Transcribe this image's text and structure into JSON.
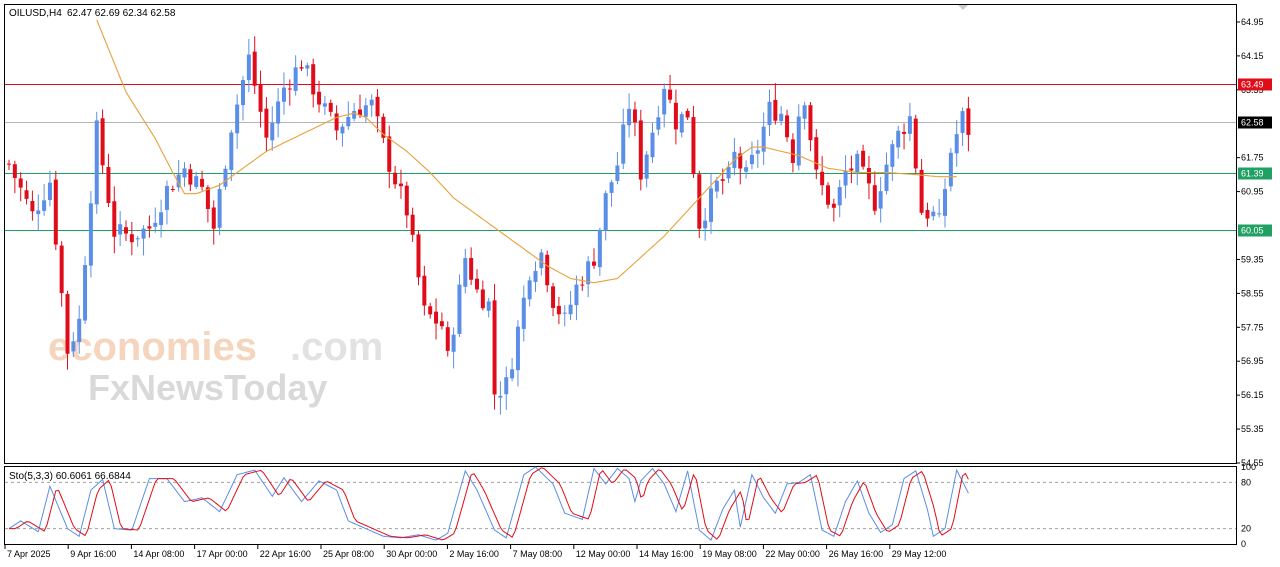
{
  "header": {
    "symbol": "OILUSD,H4",
    "ohlc": "62.47 62.69 62.34 62.58"
  },
  "stoch_header": "Sto(5,3,3) 60.6061 66.6844",
  "watermark": {
    "line1": "economies",
    "line1b": ".com",
    "line2": "FxNewsToday"
  },
  "colors": {
    "bull": "#5b8ee6",
    "bear": "#e00c1a",
    "ma": "#e8a13a",
    "resistance": "#e00c1a",
    "support": "#21a063",
    "current": "#000000",
    "stoch_k": "#5b8ee6",
    "stoch_d": "#e00c1a"
  },
  "chart_data": {
    "type": "candlestick",
    "price_axis": {
      "ticks": [
        "64.95",
        "64.15",
        "63.35",
        "61.75",
        "60.95",
        "59.35",
        "58.55",
        "57.75",
        "56.95",
        "56.15",
        "55.35",
        "54.55"
      ],
      "range": [
        54.55,
        65.35
      ]
    },
    "levels": [
      {
        "value": 63.49,
        "label": "63.49",
        "kind": "resistance"
      },
      {
        "value": 62.58,
        "label": "62.58",
        "kind": "current"
      },
      {
        "value": 61.39,
        "label": "61.39",
        "kind": "support"
      },
      {
        "value": 60.05,
        "label": "60.05",
        "kind": "support"
      }
    ],
    "time_labels": [
      "7 Apr 2025",
      "9 Apr 16:00",
      "14 Apr 08:00",
      "17 Apr 00:00",
      "22 Apr 16:00",
      "25 Apr 08:00",
      "30 Apr 00:00",
      "2 May 16:00",
      "7 May 08:00",
      "12 May 00:00",
      "14 May 16:00",
      "19 May 08:00",
      "22 May 00:00",
      "26 May 16:00",
      "29 May 12:00"
    ],
    "anchors": [
      [
        0,
        61.6
      ],
      [
        4,
        60.4
      ],
      [
        7,
        61.2
      ],
      [
        10,
        57.2
      ],
      [
        12,
        57.9
      ],
      [
        15,
        62.4
      ],
      [
        18,
        60.0
      ],
      [
        21,
        59.9
      ],
      [
        24,
        60.1
      ],
      [
        27,
        61.0
      ],
      [
        30,
        61.5
      ],
      [
        33,
        61.0
      ],
      [
        35,
        60.1
      ],
      [
        38,
        62.5
      ],
      [
        41,
        64.1
      ],
      [
        44,
        62.2
      ],
      [
        47,
        63.4
      ],
      [
        50,
        64.0
      ],
      [
        53,
        63.1
      ],
      [
        56,
        62.4
      ],
      [
        59,
        62.9
      ],
      [
        62,
        63.0
      ],
      [
        65,
        61.6
      ],
      [
        68,
        60.5
      ],
      [
        71,
        58.1
      ],
      [
        74,
        57.8
      ],
      [
        75,
        57.0
      ],
      [
        78,
        59.4
      ],
      [
        80,
        58.6
      ],
      [
        82,
        58.3
      ],
      [
        83,
        56.2
      ],
      [
        85,
        56.4
      ],
      [
        86,
        57.0
      ],
      [
        89,
        59.1
      ],
      [
        91,
        59.5
      ],
      [
        93,
        58.4
      ],
      [
        95,
        57.9
      ],
      [
        97,
        58.7
      ],
      [
        100,
        59.4
      ],
      [
        102,
        60.8
      ],
      [
        104,
        61.6
      ],
      [
        106,
        63.0
      ],
      [
        107,
        62.4
      ],
      [
        108,
        61.4
      ],
      [
        110,
        62.4
      ],
      [
        112,
        63.5
      ],
      [
        114,
        62.6
      ],
      [
        116,
        62.8
      ],
      [
        118,
        60.2
      ],
      [
        121,
        61.1
      ],
      [
        123,
        61.3
      ],
      [
        124,
        61.8
      ],
      [
        126,
        61.3
      ],
      [
        128,
        62.0
      ],
      [
        130,
        62.9
      ],
      [
        132,
        62.8
      ],
      [
        134,
        61.8
      ],
      [
        135,
        62.8
      ],
      [
        136,
        63.2
      ],
      [
        138,
        61.3
      ],
      [
        141,
        60.5
      ],
      [
        143,
        61.4
      ],
      [
        145,
        61.6
      ],
      [
        147,
        61.0
      ],
      [
        148,
        60.7
      ],
      [
        150,
        61.6
      ],
      [
        152,
        62.3
      ],
      [
        154,
        62.7
      ],
      [
        156,
        60.5
      ],
      [
        158,
        60.4
      ],
      [
        159,
        60.2
      ],
      [
        161,
        61.9
      ],
      [
        163,
        62.7
      ],
      [
        164,
        62.4
      ]
    ],
    "ma_anchors": [
      [
        15,
        65.0
      ],
      [
        20,
        63.3
      ],
      [
        25,
        62.2
      ],
      [
        28,
        61.4
      ],
      [
        30,
        60.9
      ],
      [
        32,
        60.9
      ],
      [
        36,
        61.1
      ],
      [
        40,
        61.5
      ],
      [
        44,
        61.9
      ],
      [
        47,
        62.1
      ],
      [
        50,
        62.3
      ],
      [
        53,
        62.5
      ],
      [
        56,
        62.7
      ],
      [
        59,
        62.8
      ],
      [
        61,
        62.7
      ],
      [
        64,
        62.3
      ],
      [
        68,
        61.9
      ],
      [
        72,
        61.4
      ],
      [
        76,
        60.8
      ],
      [
        80,
        60.4
      ],
      [
        84,
        60.0
      ],
      [
        88,
        59.6
      ],
      [
        92,
        59.2
      ],
      [
        96,
        58.9
      ],
      [
        100,
        58.8
      ],
      [
        104,
        58.9
      ],
      [
        108,
        59.4
      ],
      [
        112,
        59.9
      ],
      [
        116,
        60.5
      ],
      [
        120,
        61.1
      ],
      [
        124,
        61.7
      ],
      [
        127,
        62.0
      ],
      [
        129,
        62.0
      ],
      [
        132,
        61.9
      ],
      [
        135,
        61.8
      ],
      [
        140,
        61.5
      ],
      [
        145,
        61.4
      ],
      [
        150,
        61.4
      ],
      [
        155,
        61.35
      ],
      [
        159,
        61.3
      ],
      [
        162,
        61.3
      ]
    ],
    "stoch": {
      "y_ticks": [
        "100",
        "80",
        "20",
        "0"
      ],
      "levels": [
        80,
        20
      ],
      "k_anchors": [
        [
          0,
          20
        ],
        [
          2,
          30
        ],
        [
          5,
          16
        ],
        [
          7,
          75
        ],
        [
          10,
          20
        ],
        [
          12,
          10
        ],
        [
          14,
          70
        ],
        [
          16,
          84
        ],
        [
          18,
          20
        ],
        [
          21,
          18
        ],
        [
          24,
          85
        ],
        [
          27,
          85
        ],
        [
          30,
          55
        ],
        [
          33,
          60
        ],
        [
          36,
          42
        ],
        [
          39,
          90
        ],
        [
          42,
          96
        ],
        [
          45,
          62
        ],
        [
          47,
          86
        ],
        [
          50,
          55
        ],
        [
          53,
          82
        ],
        [
          56,
          70
        ],
        [
          58,
          30
        ],
        [
          61,
          20
        ],
        [
          64,
          10
        ],
        [
          67,
          8
        ],
        [
          70,
          12
        ],
        [
          73,
          5
        ],
        [
          75,
          14
        ],
        [
          78,
          95
        ],
        [
          80,
          70
        ],
        [
          83,
          18
        ],
        [
          85,
          8
        ],
        [
          88,
          90
        ],
        [
          90,
          100
        ],
        [
          93,
          78
        ],
        [
          95,
          40
        ],
        [
          98,
          32
        ],
        [
          100,
          98
        ],
        [
          102,
          78
        ],
        [
          104,
          98
        ],
        [
          106,
          85
        ],
        [
          107,
          55
        ],
        [
          108,
          82
        ],
        [
          110,
          98
        ],
        [
          112,
          78
        ],
        [
          114,
          42
        ],
        [
          116,
          95
        ],
        [
          118,
          18
        ],
        [
          120,
          5
        ],
        [
          122,
          45
        ],
        [
          124,
          70
        ],
        [
          125,
          22
        ],
        [
          127,
          90
        ],
        [
          129,
          60
        ],
        [
          131,
          40
        ],
        [
          133,
          78
        ],
        [
          135,
          80
        ],
        [
          137,
          90
        ],
        [
          139,
          18
        ],
        [
          141,
          10
        ],
        [
          143,
          55
        ],
        [
          145,
          82
        ],
        [
          147,
          40
        ],
        [
          149,
          15
        ],
        [
          151,
          25
        ],
        [
          153,
          85
        ],
        [
          155,
          95
        ],
        [
          157,
          45
        ],
        [
          158,
          10
        ],
        [
          160,
          20
        ],
        [
          162,
          96
        ],
        [
          164,
          66
        ]
      ]
    }
  }
}
